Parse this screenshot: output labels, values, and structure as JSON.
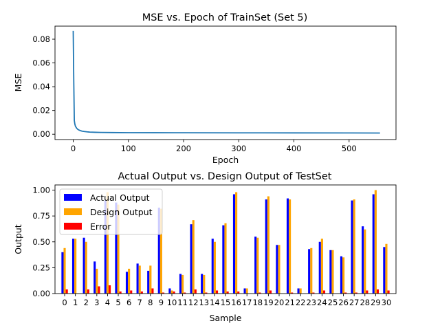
{
  "chart_data": [
    {
      "type": "line",
      "title": "MSE vs. Epoch of TrainSet (Set 5)",
      "xlabel": "Epoch",
      "ylabel": "MSE",
      "xlim": [
        -33,
        585
      ],
      "ylim": [
        -0.0045,
        0.091
      ],
      "xticks": [
        0,
        100,
        200,
        300,
        400,
        500
      ],
      "yticks": [
        0.0,
        0.02,
        0.04,
        0.06,
        0.08
      ],
      "ytick_labels": [
        "0.00",
        "0.02",
        "0.04",
        "0.06",
        "0.08"
      ],
      "series": [
        {
          "color": "#1f77b4",
          "x": [
            0,
            1,
            2,
            3,
            4,
            6,
            8,
            10,
            13,
            16,
            20,
            25,
            30,
            40,
            50,
            70,
            100,
            150,
            200,
            300,
            400,
            500,
            556
          ],
          "y": [
            0.087,
            0.045,
            0.0115,
            0.0085,
            0.0068,
            0.0052,
            0.0042,
            0.0036,
            0.003,
            0.0026,
            0.0023,
            0.002,
            0.0018,
            0.0016,
            0.0015,
            0.0014,
            0.0013,
            0.00125,
            0.0012,
            0.00115,
            0.0011,
            0.00105,
            0.001
          ]
        }
      ]
    },
    {
      "type": "bar",
      "title": "Actual Output vs. Design Output of TestSet",
      "xlabel": "Sample",
      "ylabel": "Output",
      "ylim": [
        0,
        1.05
      ],
      "yticks": [
        0.0,
        0.25,
        0.5,
        0.75,
        1.0
      ],
      "ytick_labels": [
        "0.00",
        "0.25",
        "0.50",
        "0.75",
        "1.00"
      ],
      "legend_position": "upper-left",
      "categories": [
        "0",
        "1",
        "2",
        "3",
        "4",
        "5",
        "6",
        "7",
        "8",
        "9",
        "10",
        "11",
        "12",
        "13",
        "14",
        "15",
        "16",
        "17",
        "18",
        "19",
        "20",
        "21",
        "22",
        "23",
        "24",
        "25",
        "26",
        "27",
        "28",
        "29",
        "30"
      ],
      "series": [
        {
          "name": "Actual Output",
          "color": "#0000ff",
          "values": [
            0.4,
            0.53,
            0.54,
            0.31,
            0.9,
            0.88,
            0.21,
            0.29,
            0.22,
            0.83,
            0.05,
            0.19,
            0.67,
            0.19,
            0.53,
            0.66,
            0.96,
            0.05,
            0.55,
            0.91,
            0.47,
            0.92,
            0.05,
            0.43,
            0.5,
            0.42,
            0.36,
            0.9,
            0.65,
            0.96,
            0.45
          ]
        },
        {
          "name": "Design Output",
          "color": "#ffa500",
          "values": [
            0.44,
            0.53,
            0.5,
            0.24,
            0.98,
            0.86,
            0.24,
            0.27,
            0.27,
            0.82,
            0.03,
            0.18,
            0.71,
            0.18,
            0.5,
            0.68,
            0.98,
            0.05,
            0.54,
            0.94,
            0.47,
            0.91,
            0.05,
            0.44,
            0.53,
            0.42,
            0.35,
            0.91,
            0.62,
            1.0,
            0.48
          ]
        },
        {
          "name": "Error",
          "color": "#ff0000",
          "values": [
            0.04,
            0.0,
            0.04,
            0.07,
            0.08,
            0.02,
            0.03,
            0.02,
            0.05,
            0.01,
            0.02,
            0.01,
            0.04,
            0.01,
            0.03,
            0.02,
            0.02,
            0.0,
            0.01,
            0.03,
            0.0,
            0.01,
            0.0,
            0.01,
            0.03,
            0.0,
            0.01,
            0.01,
            0.03,
            0.04,
            0.03
          ]
        }
      ]
    }
  ]
}
